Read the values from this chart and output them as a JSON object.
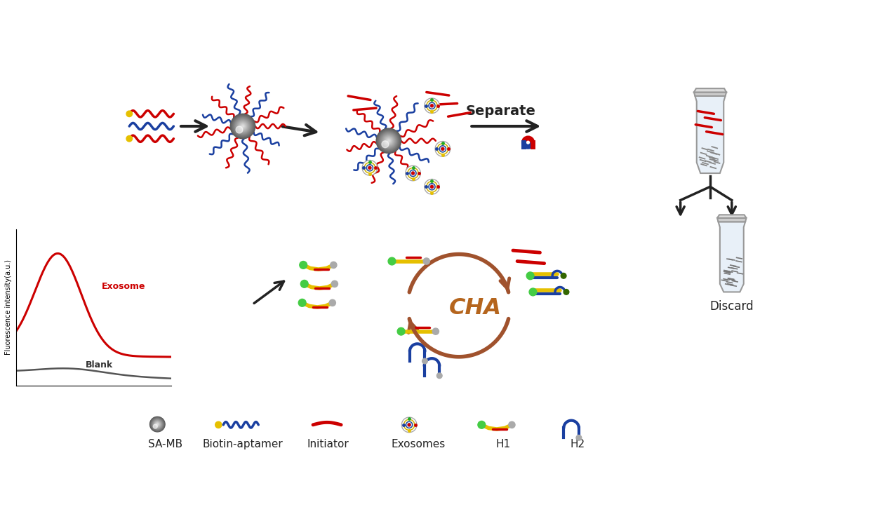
{
  "background_color": "#ffffff",
  "legend_labels": [
    "SA-MB",
    "Biotin-aptamer",
    "Initiator",
    "Exosomes",
    "H1",
    "H2"
  ],
  "separate_text": "Separate",
  "discard_text": "Discard",
  "cha_text": "CHA",
  "exosome_label": "Exosome",
  "blank_label": "Blank",
  "ylabel": "Fluorescence intensity(a.u.)",
  "colors": {
    "red": "#cc0000",
    "blue": "#1a3fa0",
    "yellow": "#e6c000",
    "gray": "#808080",
    "dark": "#222222",
    "brown": "#a0522d",
    "green": "#44cc44",
    "dark_green": "#336600",
    "light_gray": "#aaaaaa"
  }
}
